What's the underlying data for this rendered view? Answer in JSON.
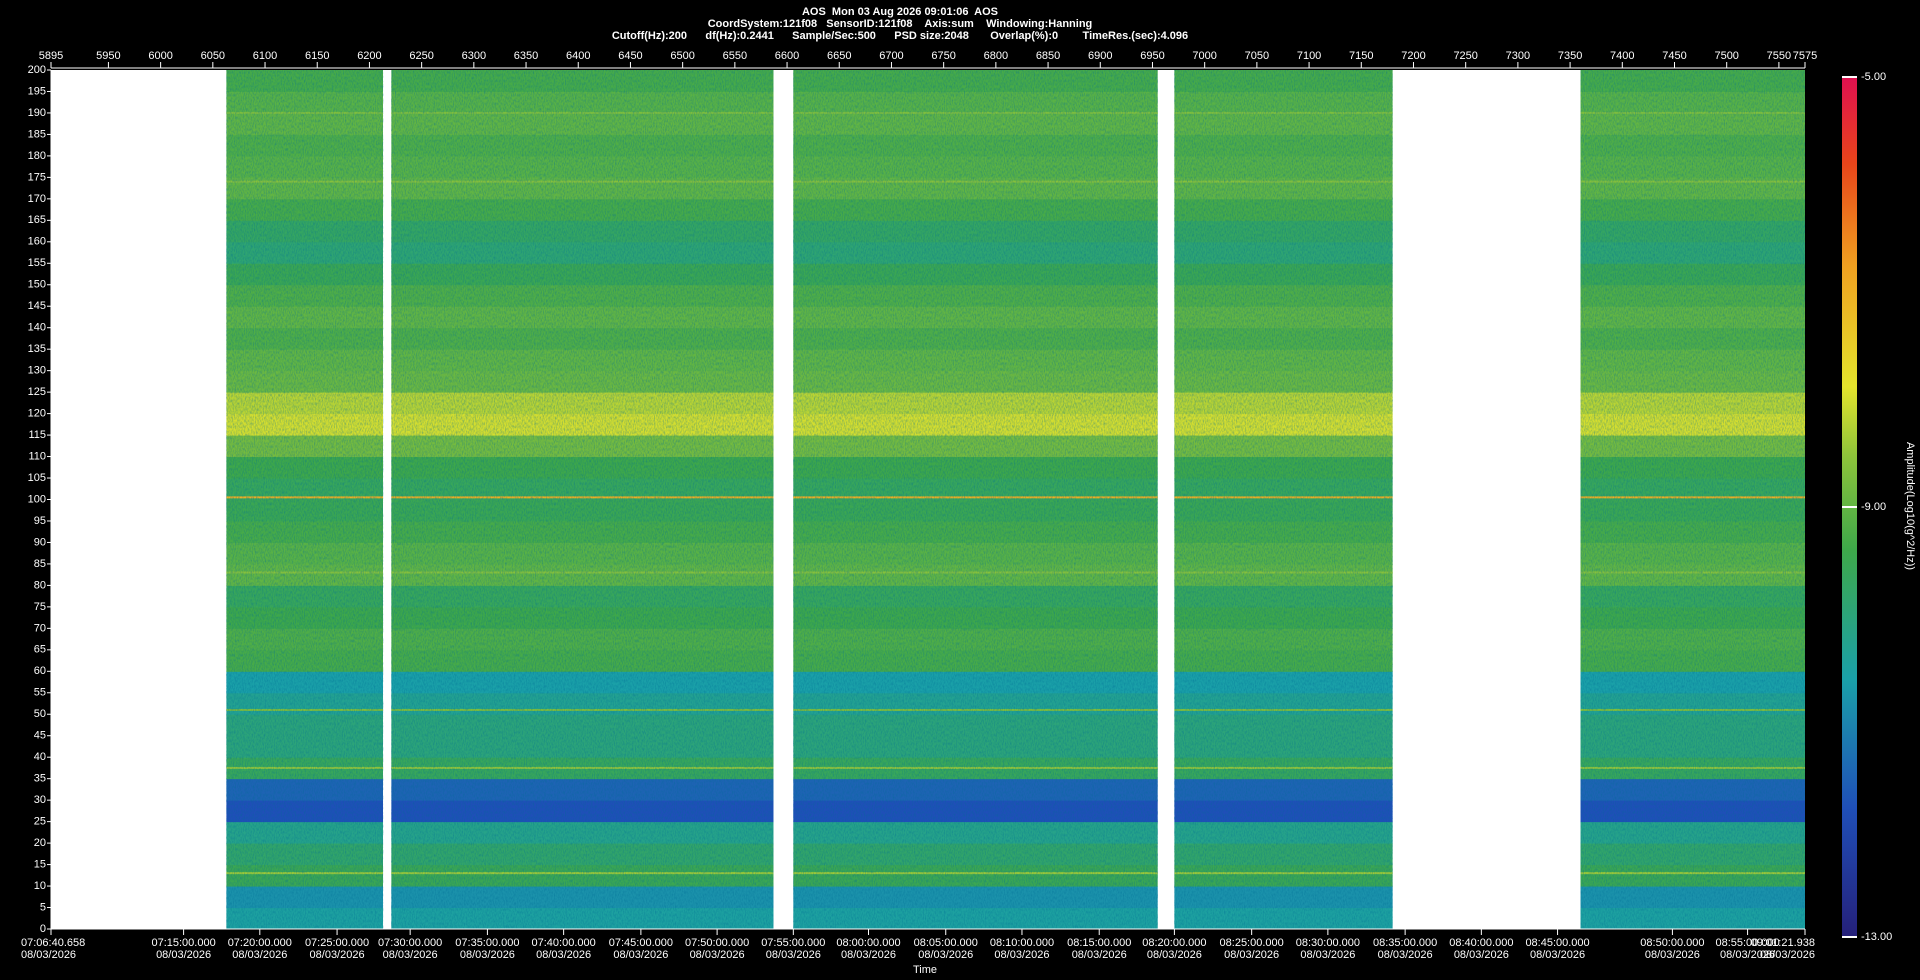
{
  "chart_data": {
    "type": "spectrogram",
    "title": "AOS  Mon 03 Aug 2026 09:01:06  AOS",
    "subtitle_lines": [
      "CoordSystem:121f08   SensorID:121f08    Axis:sum    Windowing:Hanning",
      "Cutoff(Hz):200      df(Hz):0.2441      Sample/Sec:500      PSD size:2048       Overlap(%):0        TimeRes.(sec):4.096"
    ],
    "xlim": [
      5895,
      7575
    ],
    "xticks": [
      5895,
      5950,
      6000,
      6050,
      6100,
      6150,
      6200,
      6250,
      6300,
      6350,
      6400,
      6450,
      6500,
      6550,
      6600,
      6650,
      6700,
      6750,
      6800,
      6850,
      6900,
      6950,
      7000,
      7050,
      7100,
      7150,
      7200,
      7250,
      7300,
      7350,
      7400,
      7450,
      7500,
      7550,
      7575
    ],
    "ylim": [
      0,
      200
    ],
    "yticks": [
      0,
      5,
      10,
      15,
      20,
      25,
      30,
      35,
      40,
      45,
      50,
      55,
      60,
      65,
      70,
      75,
      80,
      85,
      90,
      95,
      100,
      105,
      110,
      115,
      120,
      125,
      130,
      135,
      140,
      145,
      150,
      155,
      160,
      165,
      170,
      175,
      180,
      185,
      190,
      195,
      200
    ],
    "x2ticks": [
      {
        "value": 5895,
        "label": "07:06:40.658"
      },
      {
        "value": 6022,
        "label": "07:15:00.000"
      },
      {
        "value": 6095,
        "label": "07:20:00.000"
      },
      {
        "value": 6169,
        "label": "07:25:00.000"
      },
      {
        "value": 6239,
        "label": "07:30:00.000"
      },
      {
        "value": 6313,
        "label": "07:35:00.000"
      },
      {
        "value": 6386,
        "label": "07:40:00.000"
      },
      {
        "value": 6460,
        "label": "07:45:00.000"
      },
      {
        "value": 6533,
        "label": "07:50:00.000"
      },
      {
        "value": 6606,
        "label": "07:55:00.000"
      },
      {
        "value": 6678,
        "label": "08:00:00.000"
      },
      {
        "value": 6752,
        "label": "08:05:00.000"
      },
      {
        "value": 6825,
        "label": "08:10:00.000"
      },
      {
        "value": 6899,
        "label": "08:15:00.000"
      },
      {
        "value": 6971,
        "label": "08:20:00.000"
      },
      {
        "value": 7045,
        "label": "08:25:00.000"
      },
      {
        "value": 7118,
        "label": "08:30:00.000"
      },
      {
        "value": 7192,
        "label": "08:35:00.000"
      },
      {
        "value": 7265,
        "label": "08:40:00.000"
      },
      {
        "value": 7338,
        "label": "08:45:00.000"
      },
      {
        "value": 7448,
        "label": "08:50:00.000"
      },
      {
        "value": 7520,
        "label": "08:55:00.000"
      },
      {
        "value": 7575,
        "label": "09:01:21.938"
      }
    ],
    "x2tick_dates": [
      "08/03/2026",
      "08/03/2026",
      "08/03/2026",
      "08/03/2026",
      "08/03/2026",
      "08/03/2026",
      "08/03/2026",
      "08/03/2026",
      "08/03/2026",
      "08/03/2026",
      "08/03/2026",
      "08/03/2026",
      "08/03/2026",
      "08/03/2026",
      "08/03/2026",
      "08/03/2026",
      "08/03/2026",
      "08/03/2026",
      "08/03/2026",
      "08/03/2026",
      "08/03/2026",
      "08/03/2026",
      "08/03/2026"
    ],
    "x2label": "Time",
    "clim": [
      -13,
      -5
    ],
    "cticks": [
      {
        "value": -5,
        "label": "-5.00"
      },
      {
        "value": -9,
        "label": "-9.00"
      },
      {
        "value": -13,
        "label": "-13.00"
      }
    ],
    "clabel": "Amplitude(Log10(g^2/Hz))",
    "segments": [
      [
        6063,
        6213
      ],
      [
        6221,
        6587
      ],
      [
        6606,
        6955
      ],
      [
        6971,
        7180
      ],
      [
        7360,
        7575
      ]
    ],
    "bands": {
      "edges": [
        0,
        5,
        10,
        15,
        20,
        25,
        30,
        35,
        40,
        45,
        50,
        55,
        60,
        65,
        70,
        75,
        80,
        85,
        90,
        95,
        100,
        105,
        110,
        115,
        120,
        125,
        130,
        135,
        140,
        145,
        150,
        155,
        160,
        165,
        170,
        175,
        180,
        185,
        190,
        195,
        200
      ],
      "values": [
        -10.5,
        -10.8,
        -9.5,
        -9.8,
        -10.2,
        -11.8,
        -11.5,
        -9.6,
        -10,
        -10,
        -10.3,
        -10.6,
        -9.3,
        -9.2,
        -9.4,
        -9.6,
        -9,
        -9.1,
        -9.3,
        -9.5,
        -9.6,
        -9.4,
        -8.8,
        -8,
        -8.2,
        -8.9,
        -9,
        -9.2,
        -9,
        -9.2,
        -9.5,
        -9.9,
        -9.7,
        -9.3,
        -9,
        -9.1,
        -9.2,
        -9,
        -9.1,
        -9.3
      ]
    },
    "lines": {
      "frequencies": [
        100.5,
        37.5,
        51,
        83,
        174,
        190,
        13
      ],
      "values": [
        -7,
        -8.5,
        -8.7,
        -8.6,
        -8.6,
        -8.7,
        -8.4
      ]
    }
  }
}
